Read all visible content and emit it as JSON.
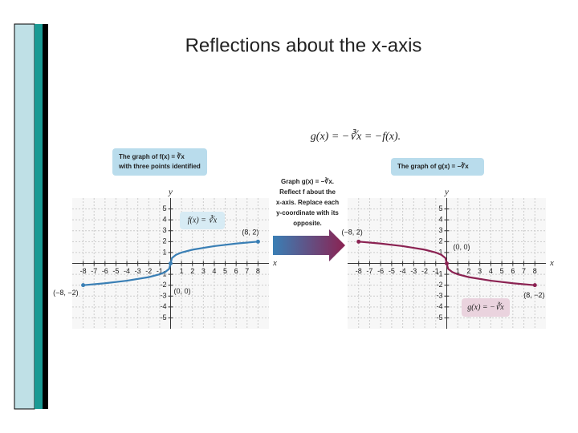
{
  "title": "Reflections about the x-axis",
  "equation": "g(x) = −∛x = −f(x).",
  "middle_note": [
    "Graph g(x) = −∛x.",
    "Reflect f about the",
    "x-axis. Replace each",
    "y-coordinate with its",
    "opposite."
  ],
  "chart_data": [
    {
      "type": "line",
      "xlabel": "x",
      "ylabel": "y",
      "callout": [
        "The graph of f(x) = ∛x",
        "with three points identified"
      ],
      "x": [
        -8,
        -6,
        -4,
        -2,
        -1,
        -0.5,
        -0.125,
        0,
        0.125,
        0.5,
        1,
        2,
        4,
        6,
        8
      ],
      "series": [
        {
          "name": "f(x) = ∛x",
          "color": "#3a7fb5",
          "values": [
            -2,
            -1.82,
            -1.59,
            -1.26,
            -1,
            -0.79,
            -0.5,
            0,
            0.5,
            0.79,
            1,
            1.26,
            1.59,
            1.82,
            2
          ]
        }
      ],
      "annotations": [
        {
          "text": "(8, 2)",
          "x": 8,
          "y": 2
        },
        {
          "text": "(−8, −2)",
          "x": -8,
          "y": -2
        },
        {
          "text": "(0, 0)",
          "x": 0,
          "y": 0
        }
      ],
      "xlim": [
        -9,
        9
      ],
      "ylim": [
        -6,
        6
      ],
      "xticks": [
        -8,
        -7,
        -6,
        -5,
        -4,
        -3,
        -2,
        -1,
        1,
        2,
        3,
        4,
        5,
        6,
        7,
        8
      ],
      "yticks": [
        -5,
        -4,
        -3,
        -2,
        -1,
        1,
        2,
        3,
        4,
        5
      ],
      "grid": true
    },
    {
      "type": "line",
      "xlabel": "x",
      "ylabel": "y",
      "callout": [
        "The graph of g(x) = −∛x"
      ],
      "x": [
        -8,
        -6,
        -4,
        -2,
        -1,
        -0.5,
        -0.125,
        0,
        0.125,
        0.5,
        1,
        2,
        4,
        6,
        8
      ],
      "series": [
        {
          "name": "g(x) = −∛x",
          "color": "#8b2252",
          "values": [
            2,
            1.82,
            1.59,
            1.26,
            1,
            0.79,
            0.5,
            0,
            -0.5,
            -0.79,
            -1,
            -1.26,
            -1.59,
            -1.82,
            -2
          ]
        }
      ],
      "annotations": [
        {
          "text": "(−8, 2)",
          "x": -8,
          "y": 2
        },
        {
          "text": "(0, 0)",
          "x": 0,
          "y": 0
        },
        {
          "text": "(8, −2)",
          "x": 8,
          "y": -2
        }
      ],
      "xlim": [
        -9,
        9
      ],
      "ylim": [
        -6,
        6
      ],
      "xticks": [
        -8,
        -7,
        -6,
        -5,
        -4,
        -3,
        -2,
        -1,
        1,
        2,
        3,
        4,
        5,
        6,
        7,
        8
      ],
      "yticks": [
        -5,
        -4,
        -3,
        -2,
        -1,
        1,
        2,
        3,
        4,
        5
      ],
      "grid": true
    }
  ]
}
